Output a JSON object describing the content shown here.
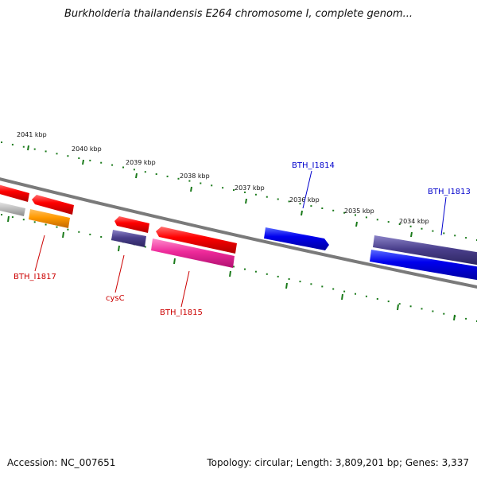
{
  "title": "Burkholderia thailandensis E264 chromosome I, complete genom...",
  "footer": {
    "accession": "Accession: NC_007651",
    "topology": "Topology: circular; Length: 3,809,201 bp; Genes: 3,337"
  },
  "kbp_ticks": [
    "2041 kbp",
    "2040 kbp",
    "2039 kbp",
    "2038 kbp",
    "2037 kbp",
    "2036 kbp",
    "2035 kbp",
    "2034 kbp"
  ],
  "gene_labels": {
    "bth_i1814": "BTH_I1814",
    "bth_i1813": "BTH_I1813",
    "bth_i1817": "BTH_I1817",
    "cysc": "cysC",
    "bth_i1815": "BTH_I1815"
  },
  "colors": {
    "red": "#ff0000",
    "blue": "#0000ee",
    "navy": "#4a3f8c",
    "magenta": "#ee2a9a",
    "orange": "#ff9900",
    "gray": "#bbbbbb",
    "backbone": "#808080",
    "tick": "#1a7a1a"
  }
}
